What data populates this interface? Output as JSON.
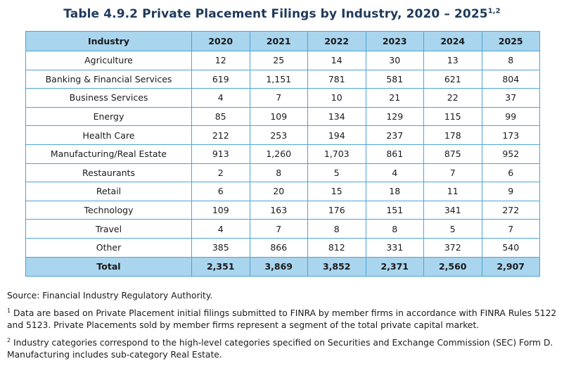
{
  "title": "Table 4.9.2 Private Placement Filings by Industry, 2020 – 2025",
  "title_sup": "1,2",
  "table": {
    "headers": [
      "Industry",
      "2020",
      "2021",
      "2022",
      "2023",
      "2024",
      "2025"
    ],
    "rows": [
      [
        "Agriculture",
        "12",
        "25",
        "14",
        "30",
        "13",
        "8"
      ],
      [
        "Banking & Financial Services",
        "619",
        "1,151",
        "781",
        "581",
        "621",
        "804"
      ],
      [
        "Business Services",
        "4",
        "7",
        "10",
        "21",
        "22",
        "37"
      ],
      [
        "Energy",
        "85",
        "109",
        "134",
        "129",
        "115",
        "99"
      ],
      [
        "Health Care",
        "212",
        "253",
        "194",
        "237",
        "178",
        "173"
      ],
      [
        "Manufacturing/Real Estate",
        "913",
        "1,260",
        "1,703",
        "861",
        "875",
        "952"
      ],
      [
        "Restaurants",
        "2",
        "8",
        "5",
        "4",
        "7",
        "6"
      ],
      [
        "Retail",
        "6",
        "20",
        "15",
        "18",
        "11",
        "9"
      ],
      [
        "Technology",
        "109",
        "163",
        "176",
        "151",
        "341",
        "272"
      ],
      [
        "Travel",
        "4",
        "7",
        "8",
        "8",
        "5",
        "7"
      ],
      [
        "Other",
        "385",
        "866",
        "812",
        "331",
        "372",
        "540"
      ]
    ],
    "total": [
      "Total",
      "2,351",
      "3,869",
      "3,852",
      "2,371",
      "2,560",
      "2,907"
    ]
  },
  "notes": {
    "source": "Source: Financial Industry Regulatory Authority.",
    "note1_marker": "1",
    "note1": "Data are based on Private Placement initial filings submitted to FINRA by member firms in accordance with FINRA Rules 5122 and 5123. Private Placements sold by member firms represent a segment of the total private capital market.",
    "note2_marker": "2",
    "note2": "Industry categories correspond to the high-level categories specified on Securities and Exchange Commission (SEC) Form D. Manufacturing includes sub-category Real Estate."
  },
  "colors": {
    "title": "#1f3a5c",
    "header_fill": "#a9d5ee",
    "border": "#4da3d6"
  }
}
